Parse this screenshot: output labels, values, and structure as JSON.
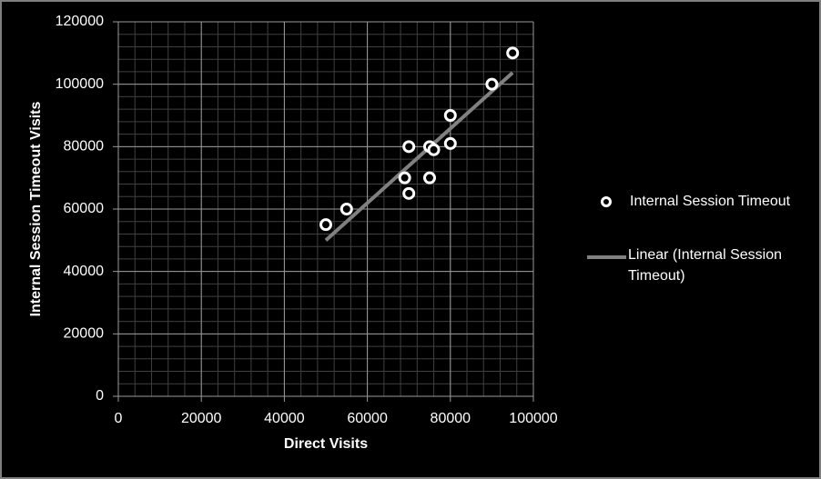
{
  "chart_data": {
    "type": "scatter",
    "x_label": "Direct Visits",
    "y_label": "Internal Session Timeout Visits",
    "xlim": [
      0,
      100000
    ],
    "xticks": [
      0,
      20000,
      40000,
      60000,
      80000,
      100000
    ],
    "ylim": [
      0,
      120000
    ],
    "yticks": [
      0,
      20000,
      40000,
      60000,
      80000,
      100000,
      120000
    ],
    "grid": true,
    "minor_grid_step": 4000,
    "series": [
      {
        "name": "Internal Session Timeout",
        "color": "#ffffff",
        "x": [
          50000,
          55000,
          69000,
          70000,
          70000,
          75000,
          76000,
          75000,
          80000,
          80000,
          90000,
          95000
        ],
        "values": [
          55000,
          60000,
          70000,
          65000,
          80000,
          80000,
          79000,
          70000,
          81000,
          90000,
          100000,
          110000
        ]
      }
    ],
    "trendline": {
      "name": "Linear (Internal Session Timeout)",
      "color": "#808080",
      "x": [
        50000,
        95000
      ],
      "values": [
        50000,
        103700
      ]
    }
  }
}
